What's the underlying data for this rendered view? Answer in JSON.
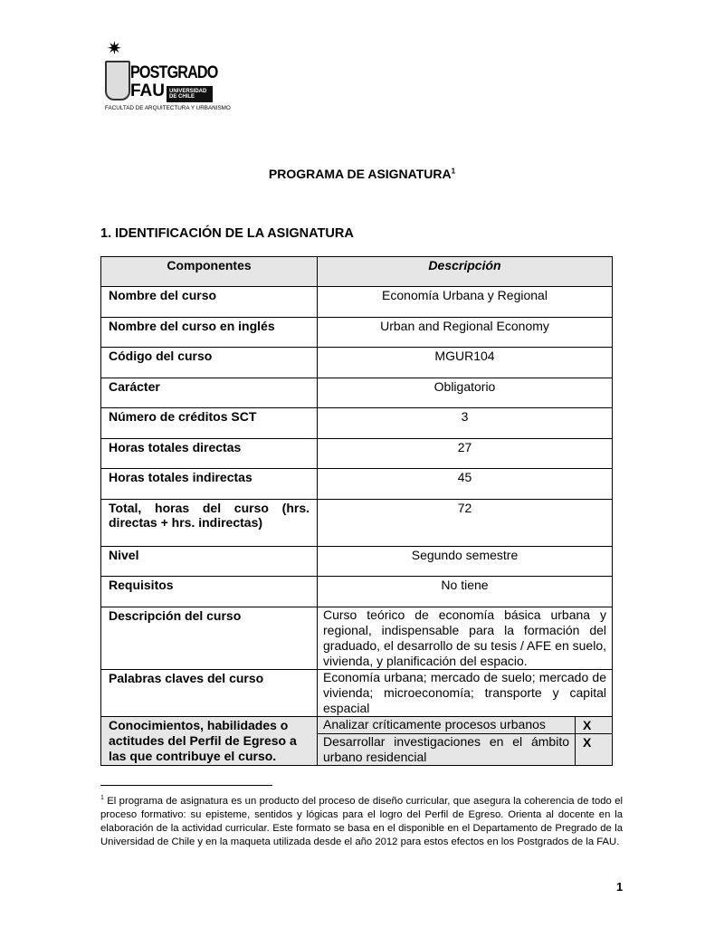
{
  "logo": {
    "title": "POSTGRADO",
    "sub": "FAU",
    "university": "UNIVERSIDAD DE CHILE",
    "faculty": "FACULTAD DE ARQUITECTURA Y URBANISMO"
  },
  "doc_title": "PROGRAMA DE ASIGNATURA",
  "doc_title_note": "1",
  "section": "1. IDENTIFICACIÓN DE LA ASIGNATURA",
  "table": {
    "headers": [
      "Componentes",
      "Descripción"
    ],
    "rows": [
      {
        "label": "Nombre del curso",
        "value": "Economía Urbana y Regional"
      },
      {
        "label": "Nombre del curso en inglés",
        "value": "Urban and Regional Economy"
      },
      {
        "label": "Código del curso",
        "value": "MGUR104"
      },
      {
        "label": "Carácter",
        "value": "Obligatorio"
      },
      {
        "label": "Número de créditos SCT",
        "value": "3"
      },
      {
        "label": "Horas totales directas",
        "value": "27"
      },
      {
        "label": "Horas totales indirectas",
        "value": "45"
      },
      {
        "label": "Total, horas del curso (hrs. directas + hrs. indirectas)",
        "value": "72"
      },
      {
        "label": "Nivel",
        "value": "Segundo semestre"
      },
      {
        "label": "Requisitos",
        "value": "No tiene"
      },
      {
        "label": "Descripción del curso",
        "value": "Curso teórico de economía básica urbana y regional, indispensable para la formación del graduado, el desarrollo de su tesis / AFE en suelo, vivienda, y planificación del espacio."
      },
      {
        "label": "Palabras claves del curso",
        "value": "Economía urbana; mercado de suelo; mercado de vivienda; microeconomía; transporte y capital espacial"
      }
    ],
    "perfil": {
      "label": "Conocimientos, habilidades o actitudes del Perfil de Egreso a las que contribuye el curso.",
      "items": [
        {
          "text": "Analizar críticamente procesos urbanos",
          "mark": "X"
        },
        {
          "text": "Desarrollar investigaciones en el ámbito urbano residencial",
          "mark": "X"
        }
      ]
    }
  },
  "footnote": {
    "num": "1",
    "text": " El programa de asignatura es un producto del proceso de diseño curricular, que asegura la coherencia de todo el proceso formativo: su episteme, sentidos y lógicas para el logro del Perfil de Egreso. Orienta al docente en la elaboración de la actividad curricular. Este formato se basa en el disponible en el Departamento de Pregrado de la Universidad de Chile y en la maqueta utilizada desde el año 2012 para estos efectos en los Postgrados de la FAU."
  },
  "page_number": "1"
}
